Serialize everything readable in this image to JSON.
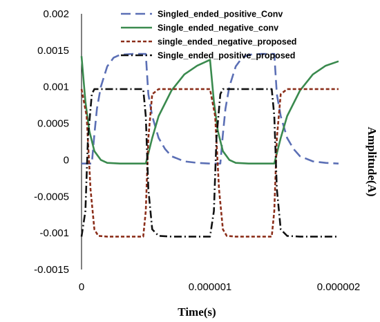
{
  "chart_data": {
    "type": "line",
    "title": "",
    "xlabel": "Time(s)",
    "ylabel": "Amplitude(A)",
    "xlim": [
      0,
      2e-06
    ],
    "ylim": [
      -0.0015,
      0.002
    ],
    "x_ticks": [
      "0",
      "0.000001",
      "0.000002"
    ],
    "y_ticks": [
      "0.002",
      "0.0015",
      "0.001",
      "0.0005",
      "0",
      "-0.0005",
      "-0.001",
      "-0.0015"
    ],
    "grid": false,
    "legend_position": "top-right",
    "series": [
      {
        "name": "Singled_ended_positive_Conv",
        "color": "#5b6fb5",
        "dash": "long-dash",
        "x": [
          0,
          8e-08,
          1e-07,
          1.2e-07,
          1.5e-07,
          2e-07,
          2.5e-07,
          3e-07,
          4e-07,
          5e-07,
          5.2e-07,
          5.5e-07,
          6e-07,
          6.5e-07,
          7e-07,
          8e-07,
          9e-07,
          1e-06,
          1.08e-06,
          1.1e-06,
          1.12e-06,
          1.15e-06,
          1.2e-06,
          1.25e-06,
          1.3e-06,
          1.4e-06,
          1.5e-06,
          1.52e-06,
          1.55e-06,
          1.6e-06,
          1.65e-06,
          1.7e-06,
          1.8e-06,
          1.9e-06,
          2e-06
        ],
        "y": [
          -5e-05,
          -5e-05,
          0.00035,
          0.0007,
          0.001,
          0.00128,
          0.0014,
          0.00144,
          0.00145,
          0.00145,
          0.0009,
          0.0006,
          0.0003,
          0.00015,
          5e-05,
          -2e-05,
          -4e-05,
          -5e-05,
          -5e-05,
          0.00035,
          0.0007,
          0.001,
          0.00128,
          0.0014,
          0.00144,
          0.00145,
          0.00145,
          0.0009,
          0.0006,
          0.0003,
          0.00015,
          5e-05,
          -2e-05,
          -4e-05,
          -5e-05
        ]
      },
      {
        "name": "Single_ended_negative_conv",
        "color": "#3a8a4e",
        "dash": "solid",
        "x": [
          0,
          3e-08,
          6e-08,
          1e-07,
          1.5e-07,
          2e-07,
          3e-07,
          4e-07,
          5e-07,
          5.5e-07,
          6e-07,
          7e-07,
          8e-07,
          9e-07,
          1e-06,
          1.03e-06,
          1.06e-06,
          1.1e-06,
          1.15e-06,
          1.2e-06,
          1.3e-06,
          1.4e-06,
          1.5e-06,
          1.55e-06,
          1.6e-06,
          1.7e-06,
          1.8e-06,
          1.9e-06,
          2e-06
        ],
        "y": [
          0.00142,
          0.0008,
          0.0004,
          0.00012,
          0,
          -4e-05,
          -5e-05,
          -5e-05,
          -5e-05,
          0.0003,
          0.0006,
          0.00095,
          0.00117,
          0.00129,
          0.00137,
          0.0008,
          0.0004,
          0.00012,
          0,
          -4e-05,
          -5e-05,
          -5e-05,
          -5e-05,
          0.0003,
          0.0006,
          0.00095,
          0.00117,
          0.00129,
          0.00135
        ]
      },
      {
        "name": "single_ended_negative_proposed",
        "color": "#8b2e1a",
        "dash": "short-dash",
        "x": [
          0,
          4e-08,
          7e-08,
          1e-07,
          1.3e-07,
          2e-07,
          3e-07,
          4e-07,
          4.8e-07,
          5e-07,
          5.2e-07,
          5.5e-07,
          6e-07,
          7e-07,
          8e-07,
          9e-07,
          1e-06,
          1.04e-06,
          1.07e-06,
          1.1e-06,
          1.13e-06,
          1.2e-06,
          1.3e-06,
          1.4e-06,
          1.48e-06,
          1.5e-06,
          1.52e-06,
          1.55e-06,
          1.6e-06,
          1.7e-06,
          1.8e-06,
          1.9e-06,
          2e-06
        ],
        "y": [
          0.00097,
          0.0006,
          -0.0004,
          -0.00095,
          -0.00104,
          -0.00105,
          -0.00105,
          -0.00105,
          -0.00105,
          -0.0007,
          0.0003,
          0.0009,
          0.00097,
          0.00097,
          0.00097,
          0.00097,
          0.00097,
          0.0006,
          -0.0004,
          -0.00095,
          -0.00104,
          -0.00105,
          -0.00105,
          -0.00105,
          -0.00105,
          -0.0007,
          0.0003,
          0.0009,
          0.00097,
          0.00097,
          0.00097,
          0.00097,
          0.00097
        ]
      },
      {
        "name": "Single_ended_positive_proposed",
        "color": "#111111",
        "dash": "dash-dot",
        "x": [
          0,
          3e-08,
          5e-08,
          8e-08,
          1e-07,
          2e-07,
          3e-07,
          4e-07,
          4.8e-07,
          5e-07,
          5.2e-07,
          5.5e-07,
          6e-07,
          7e-07,
          8e-07,
          9e-07,
          1e-06,
          1.03e-06,
          1.05e-06,
          1.08e-06,
          1.1e-06,
          1.2e-06,
          1.3e-06,
          1.4e-06,
          1.48e-06,
          1.5e-06,
          1.52e-06,
          1.55e-06,
          1.6e-06,
          1.7e-06,
          1.8e-06,
          1.9e-06,
          2e-06
        ],
        "y": [
          -0.00105,
          -0.0007,
          0.0003,
          0.0009,
          0.00097,
          0.00097,
          0.00097,
          0.00097,
          0.00097,
          0.0006,
          -0.0004,
          -0.00095,
          -0.00104,
          -0.00105,
          -0.00105,
          -0.00105,
          -0.00105,
          -0.0007,
          0.0003,
          0.0009,
          0.00097,
          0.00097,
          0.00097,
          0.00097,
          0.00097,
          0.0006,
          -0.0004,
          -0.00095,
          -0.00104,
          -0.00105,
          -0.00105,
          -0.00105,
          -0.00105
        ]
      }
    ]
  }
}
